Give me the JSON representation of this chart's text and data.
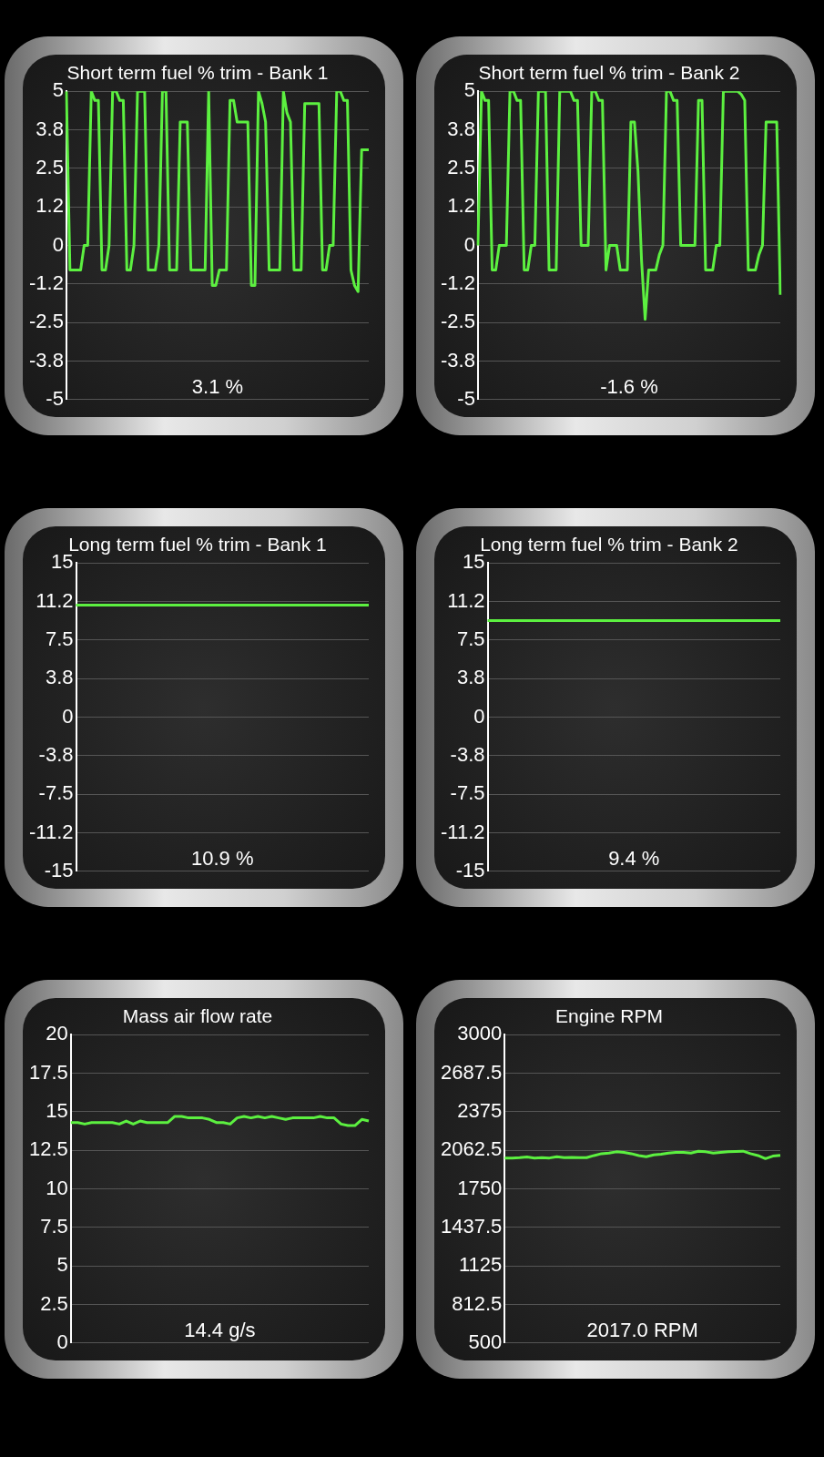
{
  "chart_data": [
    {
      "type": "line",
      "title": "Short term fuel % trim - Bank 1",
      "color": "#5cf040",
      "grid": "y",
      "ylim": [
        -5,
        5
      ],
      "yticks": [
        5,
        {
          "value": 3.75,
          "label": "3.8"
        },
        2.5,
        {
          "value": 1.25,
          "label": "1.2"
        },
        0,
        {
          "value": -1.25,
          "label": "-1.2"
        },
        -2.5,
        {
          "value": -3.75,
          "label": "-3.8"
        },
        -5
      ],
      "annotations": [
        "3.1 %"
      ],
      "categories": [
        null,
        null,
        null,
        null,
        null,
        null,
        null,
        null,
        null,
        null,
        null,
        null,
        null,
        null,
        null,
        null,
        null,
        null,
        null,
        null,
        null,
        null,
        null,
        null,
        null,
        null,
        null,
        null,
        null,
        null,
        null,
        null,
        null,
        null,
        null,
        null,
        null,
        null,
        null,
        null,
        null,
        null,
        null,
        null,
        null,
        null,
        null,
        null,
        null,
        null,
        null,
        null,
        null,
        null,
        null,
        null,
        null,
        null,
        null,
        null,
        null,
        null,
        null,
        null,
        null,
        null,
        null,
        null,
        null,
        null,
        null,
        null,
        null,
        null,
        null,
        null,
        null,
        null,
        null,
        null,
        null,
        null,
        null,
        null,
        null,
        null
      ],
      "values": [
        5,
        -0.8,
        -0.8,
        -0.8,
        -0.8,
        0,
        0,
        5,
        4.7,
        4.7,
        -0.8,
        -0.8,
        0,
        5,
        5,
        4.7,
        4.7,
        -0.8,
        -0.8,
        0,
        5,
        5,
        5,
        -0.8,
        -0.8,
        -0.8,
        0,
        5,
        5,
        -0.8,
        -0.8,
        -0.8,
        4,
        4,
        4,
        -0.8,
        -0.8,
        -0.8,
        -0.8,
        -0.8,
        5,
        -1.3,
        -1.3,
        -0.8,
        -0.8,
        -0.8,
        4.7,
        4.7,
        4,
        4,
        4,
        4,
        -1.3,
        -1.3,
        5,
        4.6,
        4,
        -0.8,
        -0.8,
        -0.8,
        -0.8,
        5,
        4.3,
        4,
        -0.8,
        -0.8,
        -0.8,
        4.6,
        4.6,
        4.6,
        4.6,
        4.6,
        -0.8,
        -0.8,
        0,
        0,
        5,
        5,
        4.7,
        4.7,
        -0.8,
        -1.3,
        -1.5,
        3.1,
        3.1,
        3.1
      ]
    },
    {
      "type": "line",
      "title": "Short term fuel % trim - Bank 2",
      "color": "#5cf040",
      "grid": "y",
      "ylim": [
        -5,
        5
      ],
      "yticks": [
        5,
        {
          "value": 3.75,
          "label": "3.8"
        },
        2.5,
        {
          "value": 1.25,
          "label": "1.2"
        },
        0,
        {
          "value": -1.25,
          "label": "-1.2"
        },
        -2.5,
        {
          "value": -3.75,
          "label": "-3.8"
        },
        -5
      ],
      "annotations": [
        "-1.6 %"
      ],
      "categories": [
        null,
        null,
        null,
        null,
        null,
        null,
        null,
        null,
        null,
        null,
        null,
        null,
        null,
        null,
        null,
        null,
        null,
        null,
        null,
        null,
        null,
        null,
        null,
        null,
        null,
        null,
        null,
        null,
        null,
        null,
        null,
        null,
        null,
        null,
        null,
        null,
        null,
        null,
        null,
        null,
        null,
        null,
        null,
        null,
        null,
        null,
        null,
        null,
        null,
        null,
        null,
        null,
        null,
        null,
        null,
        null,
        null,
        null,
        null,
        null,
        null,
        null,
        null,
        null,
        null,
        null,
        null,
        null,
        null,
        null,
        null,
        null,
        null,
        null,
        null,
        null,
        null,
        null,
        null,
        null,
        null,
        null,
        null,
        null,
        null,
        null
      ],
      "values": [
        0,
        5,
        4.7,
        4.7,
        -0.8,
        -0.8,
        0,
        0,
        0,
        5,
        5,
        4.7,
        4.7,
        -0.8,
        -0.8,
        0,
        0,
        5,
        5,
        5,
        -0.8,
        -0.8,
        -0.8,
        5,
        5,
        5,
        5,
        4.7,
        4.7,
        0,
        0,
        0,
        5,
        5,
        4.7,
        4.7,
        -0.8,
        0,
        0,
        0,
        -0.8,
        -0.8,
        -0.8,
        4,
        4,
        2.4,
        -0.5,
        -2.4,
        -0.8,
        -0.8,
        -0.8,
        -0.3,
        0,
        5,
        5,
        4.7,
        4.7,
        0,
        0,
        0,
        0,
        0,
        4.7,
        4.7,
        -0.8,
        -0.8,
        -0.8,
        0,
        0,
        5,
        5,
        5,
        5,
        5,
        4.9,
        4.7,
        -0.8,
        -0.8,
        -0.8,
        -0.3,
        0,
        4,
        4,
        4,
        4,
        -1.6
      ]
    },
    {
      "type": "line",
      "title": "Long term fuel % trim - Bank 1",
      "color": "#5cf040",
      "grid": "y",
      "ylim": [
        -15,
        15
      ],
      "yticks": [
        15,
        {
          "value": 11.25,
          "label": "11.2"
        },
        7.5,
        {
          "value": 3.75,
          "label": "3.8"
        },
        0,
        {
          "value": -3.75,
          "label": "-3.8"
        },
        -7.5,
        {
          "value": -11.25,
          "label": "-11.2"
        },
        -15
      ],
      "annotations": [
        "10.9 %"
      ],
      "categories": [
        null,
        null,
        null,
        null,
        null,
        null,
        null,
        null,
        null,
        null,
        null,
        null,
        null,
        null,
        null,
        null,
        null,
        null,
        null,
        null
      ],
      "values": [
        10.9,
        10.9,
        10.9,
        10.9,
        10.9,
        10.9,
        10.9,
        10.9,
        10.9,
        10.9,
        10.9,
        10.9,
        10.9,
        10.9,
        10.9,
        10.9,
        10.9,
        10.9,
        10.9,
        10.9
      ]
    },
    {
      "type": "line",
      "title": "Long term fuel % trim - Bank 2",
      "color": "#5cf040",
      "grid": "y",
      "ylim": [
        -15,
        15
      ],
      "yticks": [
        15,
        {
          "value": 11.25,
          "label": "11.2"
        },
        7.5,
        {
          "value": 3.75,
          "label": "3.8"
        },
        0,
        {
          "value": -3.75,
          "label": "-3.8"
        },
        -7.5,
        {
          "value": -11.25,
          "label": "-11.2"
        },
        -15
      ],
      "annotations": [
        "9.4 %"
      ],
      "categories": [
        null,
        null,
        null,
        null,
        null,
        null,
        null,
        null,
        null,
        null,
        null,
        null,
        null,
        null,
        null,
        null,
        null,
        null,
        null,
        null
      ],
      "values": [
        9.4,
        9.4,
        9.4,
        9.4,
        9.4,
        9.4,
        9.4,
        9.4,
        9.4,
        9.4,
        9.4,
        9.4,
        9.4,
        9.4,
        9.4,
        9.4,
        9.4,
        9.4,
        9.4,
        9.4
      ]
    },
    {
      "type": "line",
      "title": "Mass air flow rate",
      "color": "#5cf040",
      "grid": "y",
      "ylim": [
        0,
        20
      ],
      "yticks": [
        20,
        17.5,
        15,
        12.5,
        10,
        7.5,
        5,
        2.5,
        0
      ],
      "annotations": [
        "14.4 g/s"
      ],
      "categories": [
        null,
        null,
        null,
        null,
        null,
        null,
        null,
        null,
        null,
        null,
        null,
        null,
        null,
        null,
        null,
        null,
        null,
        null,
        null,
        null,
        null,
        null,
        null,
        null,
        null,
        null,
        null,
        null,
        null,
        null,
        null,
        null,
        null,
        null,
        null,
        null,
        null,
        null,
        null,
        null,
        null,
        null,
        null,
        null
      ],
      "values": [
        14.3,
        14.3,
        14.2,
        14.3,
        14.3,
        14.3,
        14.3,
        14.2,
        14.4,
        14.2,
        14.4,
        14.3,
        14.3,
        14.3,
        14.3,
        14.7,
        14.7,
        14.6,
        14.6,
        14.6,
        14.5,
        14.3,
        14.3,
        14.2,
        14.6,
        14.7,
        14.6,
        14.7,
        14.6,
        14.7,
        14.6,
        14.5,
        14.6,
        14.6,
        14.6,
        14.6,
        14.7,
        14.6,
        14.6,
        14.2,
        14.1,
        14.1,
        14.5,
        14.4
      ]
    },
    {
      "type": "line",
      "title": "Engine RPM",
      "color": "#5cf040",
      "grid": "y",
      "ylim": [
        500,
        3000
      ],
      "yticks": [
        3000,
        2687.5,
        2375,
        2062.5,
        1750,
        1437.5,
        1125,
        812.5,
        500
      ],
      "annotations": [
        "2017.0 RPM"
      ],
      "categories": [
        null,
        null,
        null,
        null,
        null,
        null,
        null,
        null,
        null,
        null,
        null,
        null,
        null,
        null,
        null,
        null,
        null,
        null,
        null,
        null,
        null,
        null,
        null,
        null,
        null,
        null,
        null,
        null,
        null,
        null,
        null,
        null,
        null,
        null,
        null,
        null,
        null,
        null
      ],
      "values": [
        2000,
        2000,
        2003,
        2008,
        2000,
        2003,
        2000,
        2010,
        2003,
        2005,
        2003,
        2003,
        2020,
        2035,
        2040,
        2050,
        2045,
        2035,
        2020,
        2010,
        2025,
        2030,
        2040,
        2045,
        2045,
        2040,
        2055,
        2050,
        2040,
        2045,
        2050,
        2052,
        2055,
        2035,
        2020,
        1995,
        2015,
        2022
      ]
    }
  ]
}
